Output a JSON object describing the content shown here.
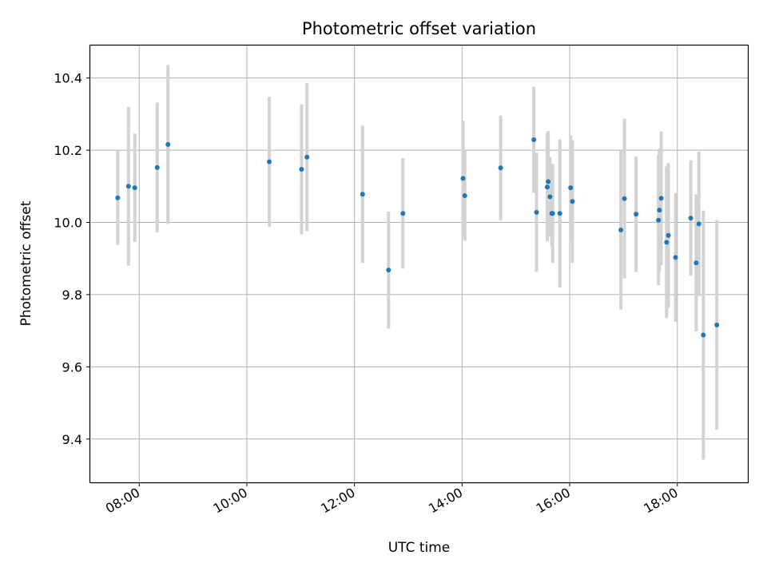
{
  "chart_data": {
    "type": "scatter",
    "title": "Photometric offset variation",
    "xlabel": "UTC time",
    "ylabel": "Photometric offset",
    "x_tick_labels": [
      "08:00",
      "10:00",
      "12:00",
      "14:00",
      "16:00",
      "18:00"
    ],
    "y_tick_labels": [
      "9.4",
      "9.6",
      "9.8",
      "10.0",
      "10.2",
      "10.4"
    ],
    "grid": true,
    "marker_color": "#1f77b4",
    "errorbar_color": "#d3d3d3",
    "series": [
      {
        "points": [
          {
            "x": "07:36",
            "y": 10.068,
            "err": 0.13
          },
          {
            "x": "07:48",
            "y": 10.1,
            "err": 0.22
          },
          {
            "x": "07:55",
            "y": 10.096,
            "err": 0.15
          },
          {
            "x": "08:20",
            "y": 10.152,
            "err": 0.18
          },
          {
            "x": "08:32",
            "y": 10.216,
            "err": 0.22
          },
          {
            "x": "10:25",
            "y": 10.168,
            "err": 0.18
          },
          {
            "x": "11:01",
            "y": 10.147,
            "err": 0.18
          },
          {
            "x": "11:07",
            "y": 10.181,
            "err": 0.205
          },
          {
            "x": "12:09",
            "y": 10.078,
            "err": 0.19
          },
          {
            "x": "12:38",
            "y": 9.868,
            "err": 0.162
          },
          {
            "x": "12:54",
            "y": 10.025,
            "err": 0.153
          },
          {
            "x": "14:01",
            "y": 10.122,
            "err": 0.16
          },
          {
            "x": "14:03",
            "y": 10.074,
            "err": 0.125
          },
          {
            "x": "14:43",
            "y": 10.151,
            "err": 0.145
          },
          {
            "x": "15:20",
            "y": 10.229,
            "err": 0.147
          },
          {
            "x": "15:23",
            "y": 10.028,
            "err": 0.165
          },
          {
            "x": "15:35",
            "y": 10.098,
            "err": 0.15
          },
          {
            "x": "15:36",
            "y": 10.113,
            "err": 0.14
          },
          {
            "x": "15:38",
            "y": 10.071,
            "err": 0.11
          },
          {
            "x": "15:40",
            "y": 10.025,
            "err": 0.09
          },
          {
            "x": "15:41",
            "y": 10.025,
            "err": 0.137
          },
          {
            "x": "15:49",
            "y": 10.025,
            "err": 0.205
          },
          {
            "x": "16:01",
            "y": 10.096,
            "err": 0.145
          },
          {
            "x": "16:03",
            "y": 10.058,
            "err": 0.17
          },
          {
            "x": "16:57",
            "y": 9.979,
            "err": 0.22
          },
          {
            "x": "17:01",
            "y": 10.066,
            "err": 0.221
          },
          {
            "x": "17:14",
            "y": 10.023,
            "err": 0.16
          },
          {
            "x": "17:39",
            "y": 10.006,
            "err": 0.18
          },
          {
            "x": "17:40",
            "y": 10.034,
            "err": 0.17
          },
          {
            "x": "17:42",
            "y": 10.067,
            "err": 0.185
          },
          {
            "x": "17:48",
            "y": 9.945,
            "err": 0.21
          },
          {
            "x": "17:50",
            "y": 9.964,
            "err": 0.2
          },
          {
            "x": "17:58",
            "y": 9.903,
            "err": 0.178
          },
          {
            "x": "18:15",
            "y": 10.012,
            "err": 0.16
          },
          {
            "x": "18:21",
            "y": 9.888,
            "err": 0.19
          },
          {
            "x": "18:24",
            "y": 9.996,
            "err": 0.2
          },
          {
            "x": "18:29",
            "y": 9.688,
            "err": 0.345
          },
          {
            "x": "18:44",
            "y": 9.716,
            "err": 0.29
          }
        ]
      }
    ]
  }
}
